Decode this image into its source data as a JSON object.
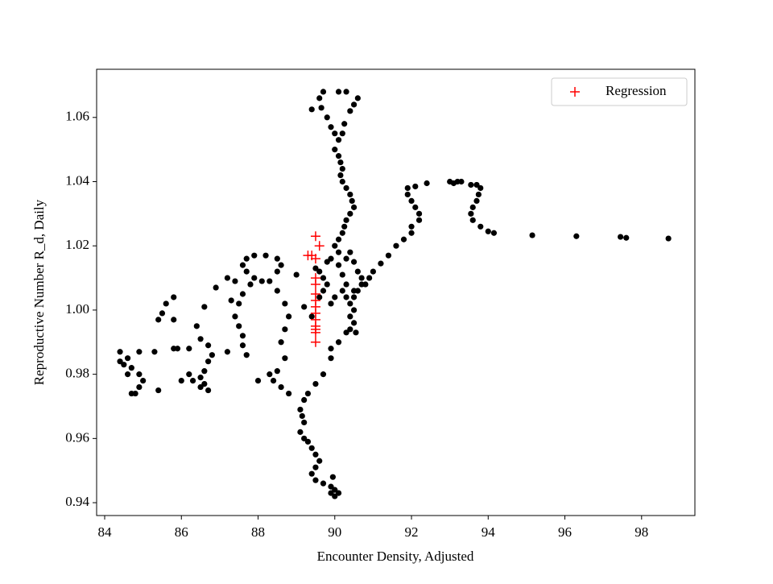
{
  "chart_data": {
    "type": "scatter",
    "xlabel": "Encounter Density, Adjusted",
    "ylabel": "Reproductive Number R_d, Daily",
    "xlim": [
      83.79,
      99.39
    ],
    "ylim": [
      0.936,
      1.075
    ],
    "xticks": [
      84,
      86,
      88,
      90,
      92,
      94,
      96,
      98
    ],
    "yticks": [
      0.94,
      0.96,
      0.98,
      {
        "value": 1,
        "label": "1.00"
      },
      1.02,
      1.04,
      1.06
    ],
    "legend": "upper right",
    "series": [
      {
        "color": "#000000",
        "marker": "dot",
        "x": [
          98.7,
          97.6,
          97.45,
          96.3,
          95.15,
          94.15,
          94.0,
          93.8,
          93.6,
          93.55,
          93.6,
          93.7,
          93.75,
          93.8,
          93.7,
          93.2,
          93.0,
          93.1,
          93.3,
          93.55,
          92.4,
          92.1,
          91.9,
          91.9,
          92.0,
          92.1,
          92.2,
          92.2,
          92.0,
          92.0,
          91.8,
          91.6,
          91.4,
          91.2,
          91.0,
          90.9,
          90.8,
          90.6,
          90.5,
          89.4,
          89.6,
          89.7,
          89.65,
          89.8,
          89.9,
          90.0,
          90.1,
          90.2,
          90.25,
          90.4,
          90.5,
          90.6,
          90.3,
          90.1,
          90.0,
          90.1,
          90.15,
          90.2,
          90.15,
          90.2,
          90.3,
          90.4,
          90.45,
          90.5,
          90.4,
          90.3,
          90.25,
          90.2,
          90.1,
          90.0,
          90.1,
          89.9,
          89.8,
          89.5,
          89.6,
          89.7,
          89.8,
          89.7,
          89.6,
          89.9,
          90.0,
          90.2,
          90.3,
          90.2,
          90.1,
          90.3,
          90.4,
          90.5,
          90.6,
          90.7,
          90.7,
          90.5,
          90.3,
          90.4,
          90.5,
          90.4,
          90.5,
          90.4,
          90.55,
          90.3,
          90.1,
          89.9,
          89.9,
          89.7,
          89.5,
          89.3,
          89.2,
          89.1,
          89.15,
          89.2,
          89.1,
          89.2,
          89.3,
          89.4,
          89.5,
          89.6,
          89.5,
          89.4,
          89.5,
          89.7,
          89.9,
          90.0,
          90.0,
          89.9,
          90.1,
          89.95,
          88.7,
          88.5,
          88.4,
          88.6,
          88.8,
          88.0,
          88.3,
          88.6,
          88.7,
          88.8,
          88.7,
          88.5,
          88.3,
          88.5,
          88.6,
          88.5,
          88.2,
          87.9,
          87.7,
          87.6,
          87.7,
          87.9,
          88.1,
          87.8,
          87.6,
          87.5,
          87.4,
          87.5,
          87.6,
          87.6,
          87.7,
          87.2,
          87.3,
          87.4,
          87.2,
          86.9,
          86.6,
          86.4,
          86.5,
          86.7,
          86.8,
          86.7,
          86.6,
          86.5,
          86.6,
          86.7,
          86.5,
          86.3,
          86.2,
          86.0,
          85.9,
          85.8,
          86.2,
          85.8,
          85.6,
          85.5,
          85.4,
          85.8,
          85.3,
          85.4,
          85.0,
          84.9,
          84.8,
          84.7,
          84.6,
          84.5,
          84.4,
          84.4,
          84.6,
          84.7,
          84.9,
          84.9,
          89.0,
          89.2,
          89.4
        ],
        "y": [
          1.0223,
          1.0225,
          1.0228,
          1.023,
          1.0233,
          1.024,
          1.0245,
          1.026,
          1.028,
          1.03,
          1.032,
          1.034,
          1.036,
          1.038,
          1.039,
          1.04,
          1.04,
          1.0395,
          1.04,
          1.039,
          1.0395,
          1.0385,
          1.038,
          1.036,
          1.034,
          1.032,
          1.03,
          1.028,
          1.026,
          1.024,
          1.022,
          1.02,
          1.017,
          1.0145,
          1.012,
          1.01,
          1.008,
          1.006,
          1.004,
          1.0625,
          1.066,
          1.068,
          1.063,
          1.06,
          1.057,
          1.055,
          1.053,
          1.055,
          1.058,
          1.062,
          1.064,
          1.066,
          1.068,
          1.068,
          1.05,
          1.048,
          1.046,
          1.044,
          1.042,
          1.04,
          1.038,
          1.036,
          1.034,
          1.032,
          1.03,
          1.028,
          1.026,
          1.024,
          1.022,
          1.02,
          1.018,
          1.016,
          1.015,
          1.013,
          1.012,
          1.01,
          1.008,
          1.006,
          1.004,
          1.002,
          1.004,
          1.006,
          1.008,
          1.011,
          1.014,
          1.016,
          1.018,
          1.015,
          1.012,
          1.01,
          1.008,
          1.006,
          1.004,
          1.002,
          1.0,
          0.998,
          0.996,
          0.994,
          0.993,
          0.993,
          0.99,
          0.988,
          0.985,
          0.98,
          0.977,
          0.974,
          0.972,
          0.969,
          0.967,
          0.965,
          0.962,
          0.96,
          0.959,
          0.957,
          0.955,
          0.953,
          0.951,
          0.949,
          0.947,
          0.946,
          0.945,
          0.944,
          0.942,
          0.943,
          0.943,
          0.948,
          0.985,
          0.981,
          0.978,
          0.976,
          0.974,
          0.978,
          0.98,
          0.99,
          0.994,
          0.998,
          1.002,
          1.006,
          1.009,
          1.012,
          1.014,
          1.016,
          1.017,
          1.017,
          1.016,
          1.014,
          1.012,
          1.01,
          1.009,
          1.008,
          1.005,
          1.002,
          0.998,
          0.995,
          0.992,
          0.989,
          0.986,
          0.987,
          1.003,
          1.009,
          1.01,
          1.007,
          1.001,
          0.995,
          0.991,
          0.989,
          0.986,
          0.984,
          0.981,
          0.979,
          0.977,
          0.975,
          0.976,
          0.978,
          0.98,
          0.978,
          0.988,
          0.988,
          0.988,
          1.004,
          1.002,
          0.999,
          0.997,
          0.997,
          0.987,
          0.975,
          0.978,
          0.976,
          0.974,
          0.974,
          0.98,
          0.983,
          0.984,
          0.987,
          0.985,
          0.982,
          0.98,
          0.987,
          1.011,
          1.001,
          0.998
        ]
      },
      {
        "name": "Regression",
        "color": "#ff0000",
        "marker": "plus",
        "x": [
          89.5,
          89.6,
          89.3,
          89.4,
          89.5,
          89.5,
          89.5,
          89.5,
          89.5,
          89.5,
          89.5,
          89.5,
          89.5,
          89.5,
          89.5,
          89.5
        ],
        "y": [
          1.023,
          1.02,
          1.017,
          1.017,
          1.016,
          1.01,
          1.008,
          1.005,
          1.003,
          1.001,
          0.999,
          0.997,
          0.995,
          0.994,
          0.993,
          0.99
        ]
      }
    ]
  }
}
